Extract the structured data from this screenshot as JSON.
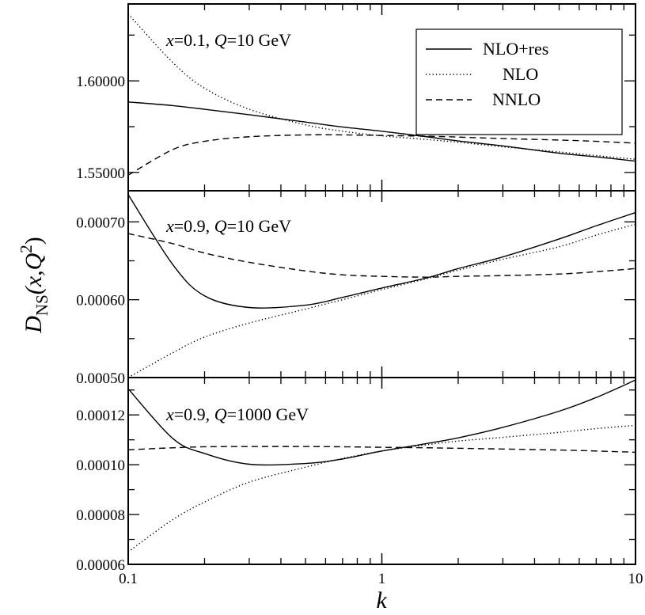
{
  "chart_data": {
    "type": "line",
    "xlabel": "k",
    "x_scale": "log",
    "xlim": [
      0.1,
      10
    ],
    "x_tick_labels": [
      "0.1",
      "1",
      "10"
    ],
    "ylabel": {
      "prefix": "D",
      "sub": "NS",
      "args": "(x,Q",
      "sup": "2",
      "close": ")"
    },
    "legend": {
      "placement": "top-right of top panel",
      "entries": [
        {
          "label": "NLO+res",
          "style": "solid"
        },
        {
          "label": "NLO",
          "style": "dotted"
        },
        {
          "label": "NNLO",
          "style": "dashed"
        }
      ]
    },
    "grid": false,
    "panels": [
      {
        "annotation": {
          "x_part": "x",
          "x_val": "=0.1, ",
          "q_part": "Q",
          "q_val": "=10 GeV"
        },
        "ylim": [
          1.54,
          1.642
        ],
        "y_ticks": [
          1.55,
          1.6
        ],
        "y_tick_labels": [
          "1.55000",
          "1.60000"
        ],
        "x": [
          0.1,
          0.15,
          0.2,
          0.3,
          0.5,
          0.7,
          1,
          1.5,
          2,
          3,
          5,
          7,
          10
        ],
        "series": [
          {
            "name": "NLO+res",
            "style": "solid",
            "values": [
              1.5885,
              1.5865,
              1.5845,
              1.5815,
              1.5775,
              1.5748,
              1.5725,
              1.5695,
              1.5672,
              1.5645,
              1.5605,
              1.5585,
              1.5562
            ]
          },
          {
            "name": "NLO",
            "style": "dotted",
            "values": [
              1.6365,
              1.61,
              1.596,
              1.5845,
              1.576,
              1.5725,
              1.57,
              1.568,
              1.5665,
              1.564,
              1.5612,
              1.5592,
              1.5572
            ]
          },
          {
            "name": "NNLO",
            "style": "dashed",
            "values": [
              1.5485,
              1.5625,
              1.567,
              1.5695,
              1.5705,
              1.5705,
              1.5702,
              1.5698,
              1.5693,
              1.5685,
              1.5677,
              1.567,
              1.566
            ]
          }
        ]
      },
      {
        "annotation": {
          "x_part": "x",
          "x_val": "=0.9, ",
          "q_part": "Q",
          "q_val": "=10 GeV"
        },
        "ylim": [
          0.0005,
          0.00074
        ],
        "y_ticks": [
          0.0005,
          0.0006,
          0.0007
        ],
        "y_tick_labels": [
          "0.00050",
          "0.00060",
          "0.00070"
        ],
        "x": [
          0.1,
          0.15,
          0.2,
          0.3,
          0.5,
          0.7,
          1,
          1.5,
          2,
          3,
          5,
          7,
          10
        ],
        "series": [
          {
            "name": "NLO+res",
            "style": "solid",
            "values": [
              0.000735,
              0.000645,
              0.000605,
              0.00059,
              0.000593,
              0.000603,
              0.000615,
              0.000628,
              0.00064,
              0.000655,
              0.000678,
              0.000695,
              0.000712
            ]
          },
          {
            "name": "NLO",
            "style": "dotted",
            "values": [
              0.0005,
              0.000532,
              0.000552,
              0.00057,
              0.000588,
              0.0006,
              0.000613,
              0.000627,
              0.000638,
              0.000652,
              0.000668,
              0.000683,
              0.000697
            ]
          },
          {
            "name": "NNLO",
            "style": "dashed",
            "values": [
              0.000685,
              0.000672,
              0.00066,
              0.000648,
              0.000637,
              0.000632,
              0.00063,
              0.000629,
              0.00063,
              0.000631,
              0.000633,
              0.000636,
              0.00064
            ]
          }
        ]
      },
      {
        "annotation": {
          "x_part": "x",
          "x_val": "=0.9, ",
          "q_part": "Q",
          "q_val": "=1000 GeV"
        },
        "ylim": [
          6e-05,
          0.000135
        ],
        "y_ticks": [
          6e-05,
          8e-05,
          0.0001,
          0.00012
        ],
        "y_tick_labels": [
          "0.00006",
          "0.00008",
          "0.00010",
          "0.00012"
        ],
        "x": [
          0.1,
          0.15,
          0.2,
          0.3,
          0.5,
          0.7,
          1,
          1.5,
          2,
          3,
          5,
          7,
          10
        ],
        "series": [
          {
            "name": "NLO+res",
            "style": "solid",
            "values": [
              0.0001305,
              0.0001105,
              0.0001045,
              0.0001002,
              0.0001005,
              0.0001023,
              0.0001055,
              0.0001085,
              0.0001108,
              0.000115,
              0.0001215,
              0.000127,
              0.000134
            ]
          },
          {
            "name": "NLO",
            "style": "dotted",
            "values": [
              6.5e-05,
              7.8e-05,
              8.5e-05,
              9.3e-05,
              9.9e-05,
              0.0001025,
              0.0001055,
              0.000108,
              0.0001095,
              0.000111,
              0.000113,
              0.0001145,
              0.0001158
            ]
          },
          {
            "name": "NNLO",
            "style": "dashed",
            "values": [
              0.000106,
              0.0001068,
              0.0001072,
              0.0001073,
              0.0001073,
              0.0001072,
              0.000107,
              0.0001068,
              0.0001066,
              0.0001063,
              0.0001059,
              0.0001055,
              0.000105
            ]
          }
        ]
      }
    ]
  }
}
